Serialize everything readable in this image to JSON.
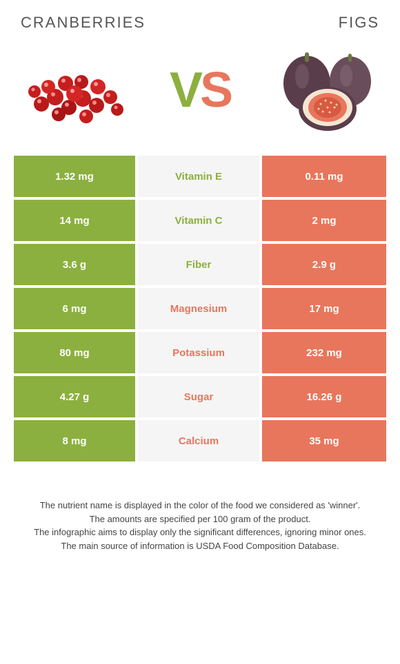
{
  "titles": {
    "left": "CRANBERRIES",
    "right": "FIGS"
  },
  "vs": {
    "v": "V",
    "s": "S"
  },
  "colors": {
    "left_bg": "#8bb03f",
    "right_bg": "#e8765c",
    "mid_bg": "#f5f5f5",
    "cell_text": "#ffffff",
    "title_text": "#555555",
    "foot_text": "#444444"
  },
  "rows": [
    {
      "left": "1.32 mg",
      "label": "Vitamin E",
      "right": "0.11 mg",
      "winner": "left"
    },
    {
      "left": "14 mg",
      "label": "Vitamin C",
      "right": "2 mg",
      "winner": "left"
    },
    {
      "left": "3.6 g",
      "label": "Fiber",
      "right": "2.9 g",
      "winner": "left"
    },
    {
      "left": "6 mg",
      "label": "Magnesium",
      "right": "17 mg",
      "winner": "right"
    },
    {
      "left": "80 mg",
      "label": "Potassium",
      "right": "232 mg",
      "winner": "right"
    },
    {
      "left": "4.27 g",
      "label": "Sugar",
      "right": "16.26 g",
      "winner": "right"
    },
    {
      "left": "8 mg",
      "label": "Calcium",
      "right": "35 mg",
      "winner": "right"
    }
  ],
  "footnotes": [
    "The nutrient name is displayed in the color of the food we considered as 'winner'.",
    "The amounts are specified per 100 gram of the product.",
    "The infographic aims to display only the significant differences, ignoring minor ones.",
    "The main source of information is USDA Food Composition Database."
  ],
  "illustration": {
    "cranberries": {
      "berry_color": "#c41e1e",
      "highlight": "#ff6b6b",
      "count": 18
    },
    "figs": {
      "skin": "#5a3d4a",
      "flesh": "#e8765c",
      "seed": "#b83a2a"
    }
  }
}
